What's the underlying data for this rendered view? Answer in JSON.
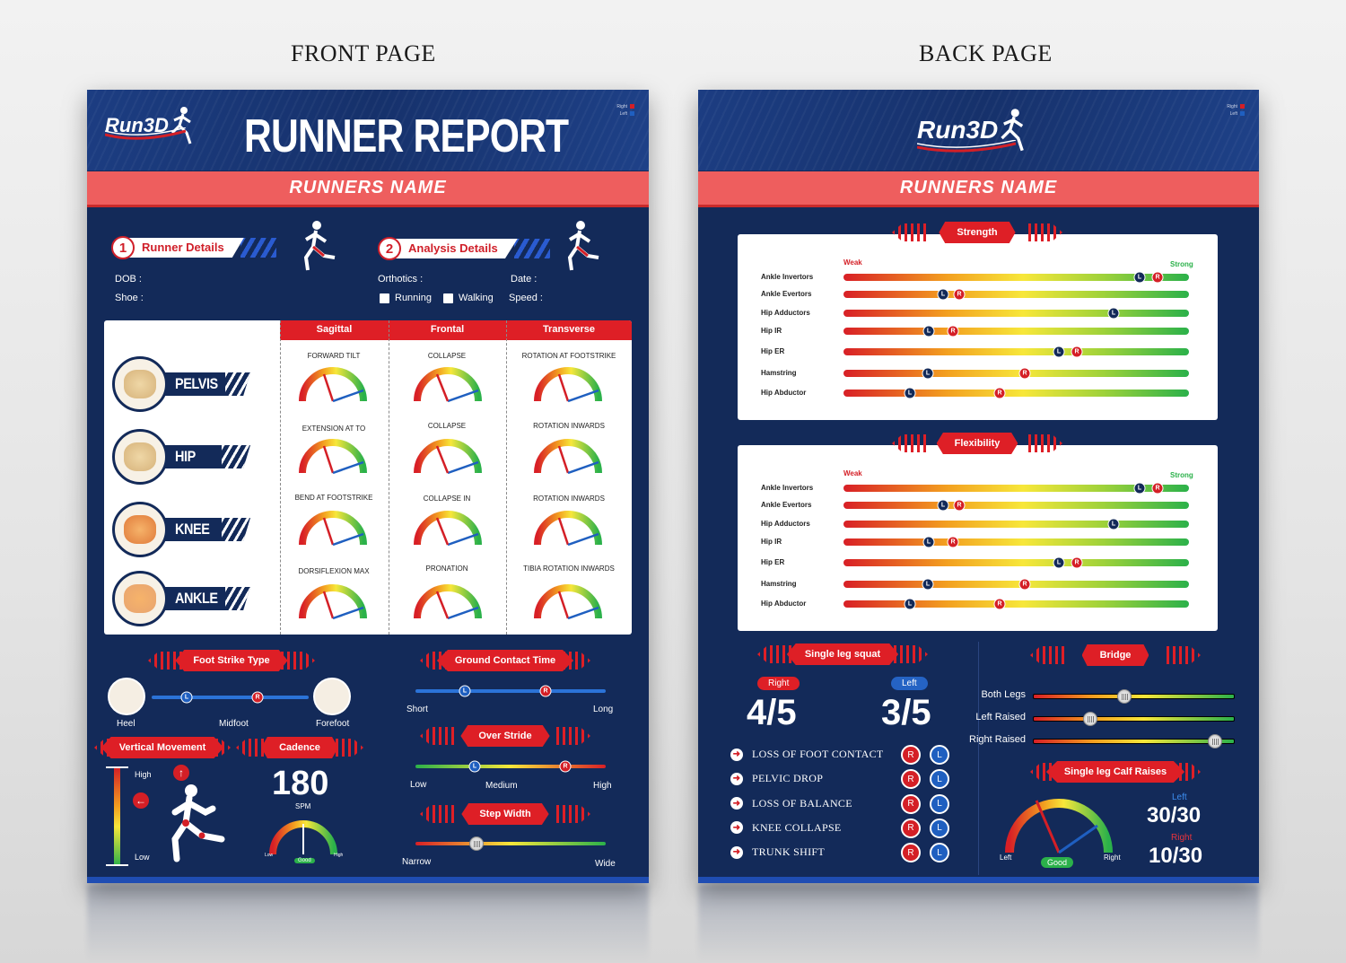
{
  "labels": {
    "front": "FRONT PAGE",
    "back": "BACK PAGE"
  },
  "logo": "Run3D",
  "legend": {
    "right": "Right",
    "left": "Left",
    "right_color": "#d41f26",
    "left_color": "#1f5fc0"
  },
  "front": {
    "title": "RUNNER REPORT",
    "band": "RUNNERS NAME",
    "sec1": {
      "num": "1",
      "label": "Runner Details",
      "dob": "DOB :",
      "shoe": "Shoe :"
    },
    "sec2": {
      "num": "2",
      "label": "Analysis Details",
      "orthotics": "Orthotics :",
      "date": "Date :",
      "running": "Running",
      "walking": "Walking",
      "speed": "Speed :"
    },
    "table": {
      "headers": [
        "Sagittal",
        "Frontal",
        "Transverse"
      ],
      "joints": [
        "PELVIS",
        "HIP",
        "KNEE",
        "ANKLE"
      ],
      "rows": [
        [
          "FORWARD TILT",
          "COLLAPSE",
          "ROTATION AT FOOTSTRIKE"
        ],
        [
          "EXTENSION AT TO",
          "COLLAPSE",
          "ROTATION INWARDS"
        ],
        [
          "BEND AT FOOTSTRIKE",
          "COLLAPSE IN",
          "ROTATION INWARDS"
        ],
        [
          "DORSIFLEXION MAX",
          "PRONATION",
          "TIBIA ROTATION INWARDS"
        ]
      ]
    },
    "foot_strike": {
      "title": "Foot Strike Type",
      "heel": "Heel",
      "midfoot": "Midfoot",
      "forefoot": "Forefoot",
      "L": "L",
      "R": "R"
    },
    "vertical": {
      "title": "Vertical Movement",
      "high": "High",
      "low": "Low"
    },
    "cadence": {
      "title": "Cadence",
      "value": "180",
      "unit": "SPM",
      "low": "Low",
      "good": "Good",
      "high": "High"
    },
    "gct": {
      "title": "Ground Contact Time",
      "short": "Short",
      "long": "Long"
    },
    "overstride": {
      "title": "Over Stride",
      "low": "Low",
      "medium": "Medium",
      "high": "High"
    },
    "step": {
      "title": "Step Width",
      "narrow": "Narrow",
      "wide": "Wide"
    }
  },
  "back": {
    "band": "RUNNERS NAME",
    "weak": "Weak",
    "strong": "Strong",
    "strength": {
      "title": "Strength",
      "rows": [
        "Ankle Invertors",
        "Ankle Evertors",
        "Hip Adductors",
        "Hip IR",
        "Hip ER",
        "Hamstring",
        "Hip Abductor"
      ]
    },
    "flexibility": {
      "title": "Flexibility",
      "rows": [
        "Ankle Invertors",
        "Ankle Evertors",
        "Hip Adductors",
        "Hip IR",
        "Hip ER",
        "Hamstring",
        "Hip Abductor"
      ]
    },
    "sls": {
      "title": "Single leg squat",
      "right": "Right",
      "left": "Left",
      "right_score": "4/5",
      "left_score": "3/5",
      "items": [
        "LOSS OF FOOT CONTACT",
        "PELVIC DROP",
        "LOSS OF BALANCE",
        "KNEE COLLAPSE",
        "TRUNK SHIFT"
      ]
    },
    "bridge": {
      "title": "Bridge",
      "rows": [
        "Both Legs",
        "Left Raised",
        "Right Raised"
      ]
    },
    "calf": {
      "title": "Single leg Calf Raises",
      "left": "Left",
      "left_score": "30/30",
      "right": "Right",
      "right_score": "10/30",
      "g_left": "Left",
      "g_good": "Good",
      "g_right": "Right"
    }
  }
}
